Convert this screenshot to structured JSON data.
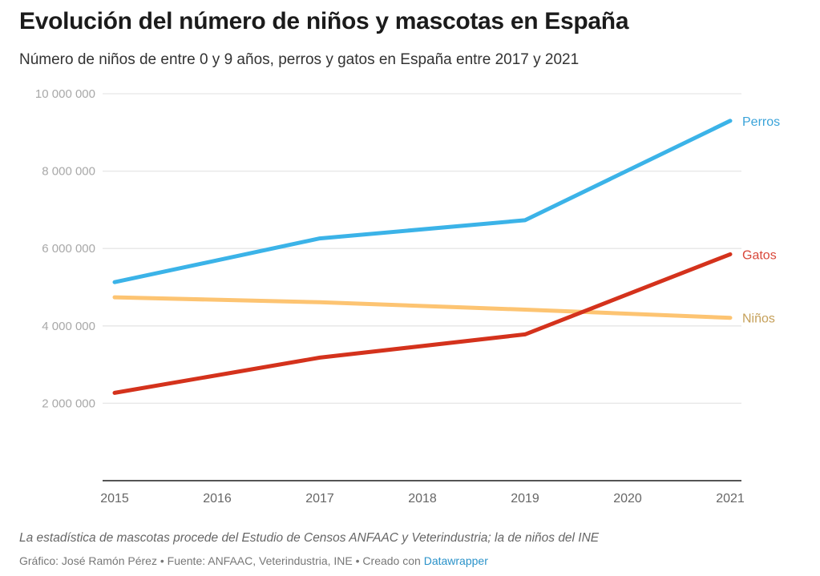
{
  "header": {
    "title": "Evolución del número de niños y mascotas en España",
    "subtitle": "Número de niños de entre 0 y 9 años, perros y gatos en España entre 2017 y 2021"
  },
  "footer": {
    "note": "La estadística de mascotas procede del Estudio de Censos ANFAAC y Veterindustria; la de niños del INE",
    "credits_prefix": "Gráfico: José Ramón Pérez • Fuente: ANFAAC, Veterindustria, INE • Creado con ",
    "credits_link": "Datawrapper"
  },
  "chart_data": {
    "type": "line",
    "title": "Evolución del número de niños y mascotas en España",
    "subtitle": "Número de niños de entre 0 y 9 años, perros y gatos en España entre 2017 y 2021",
    "xlabel": "",
    "ylabel": "",
    "x": [
      2015,
      2016,
      2017,
      2018,
      2019,
      2020,
      2021
    ],
    "x_ticks": [
      "2015",
      "2016",
      "2017",
      "2018",
      "2019",
      "2020",
      "2021"
    ],
    "ylim": [
      0,
      10000000
    ],
    "y_ticks": [
      {
        "value": 2000000,
        "label": "2 000 000"
      },
      {
        "value": 4000000,
        "label": "4 000 000"
      },
      {
        "value": 6000000,
        "label": "6 000 000"
      },
      {
        "value": 8000000,
        "label": "8 000 000"
      },
      {
        "value": 10000000,
        "label": "10 000 000"
      }
    ],
    "grid": true,
    "legend": "direct labels at line ends (right)",
    "series": [
      {
        "name": "Perros",
        "color": "#3bb3e8",
        "label_color": "#3aa3d9",
        "points": [
          [
            2015,
            5130000
          ],
          [
            2017,
            6260000
          ],
          [
            2019,
            6730000
          ],
          [
            2021,
            9300000
          ]
        ]
      },
      {
        "name": "Gatos",
        "color": "#d4321c",
        "label_color": "#d9473a",
        "points": [
          [
            2015,
            2270000
          ],
          [
            2017,
            3180000
          ],
          [
            2019,
            3780000
          ],
          [
            2021,
            5850000
          ]
        ]
      },
      {
        "name": "Niños",
        "color": "#fdc472",
        "label_color": "#c5a05a",
        "points": [
          [
            2015,
            4740000
          ],
          [
            2017,
            4610000
          ],
          [
            2019,
            4420000
          ],
          [
            2021,
            4210000
          ]
        ]
      }
    ]
  }
}
